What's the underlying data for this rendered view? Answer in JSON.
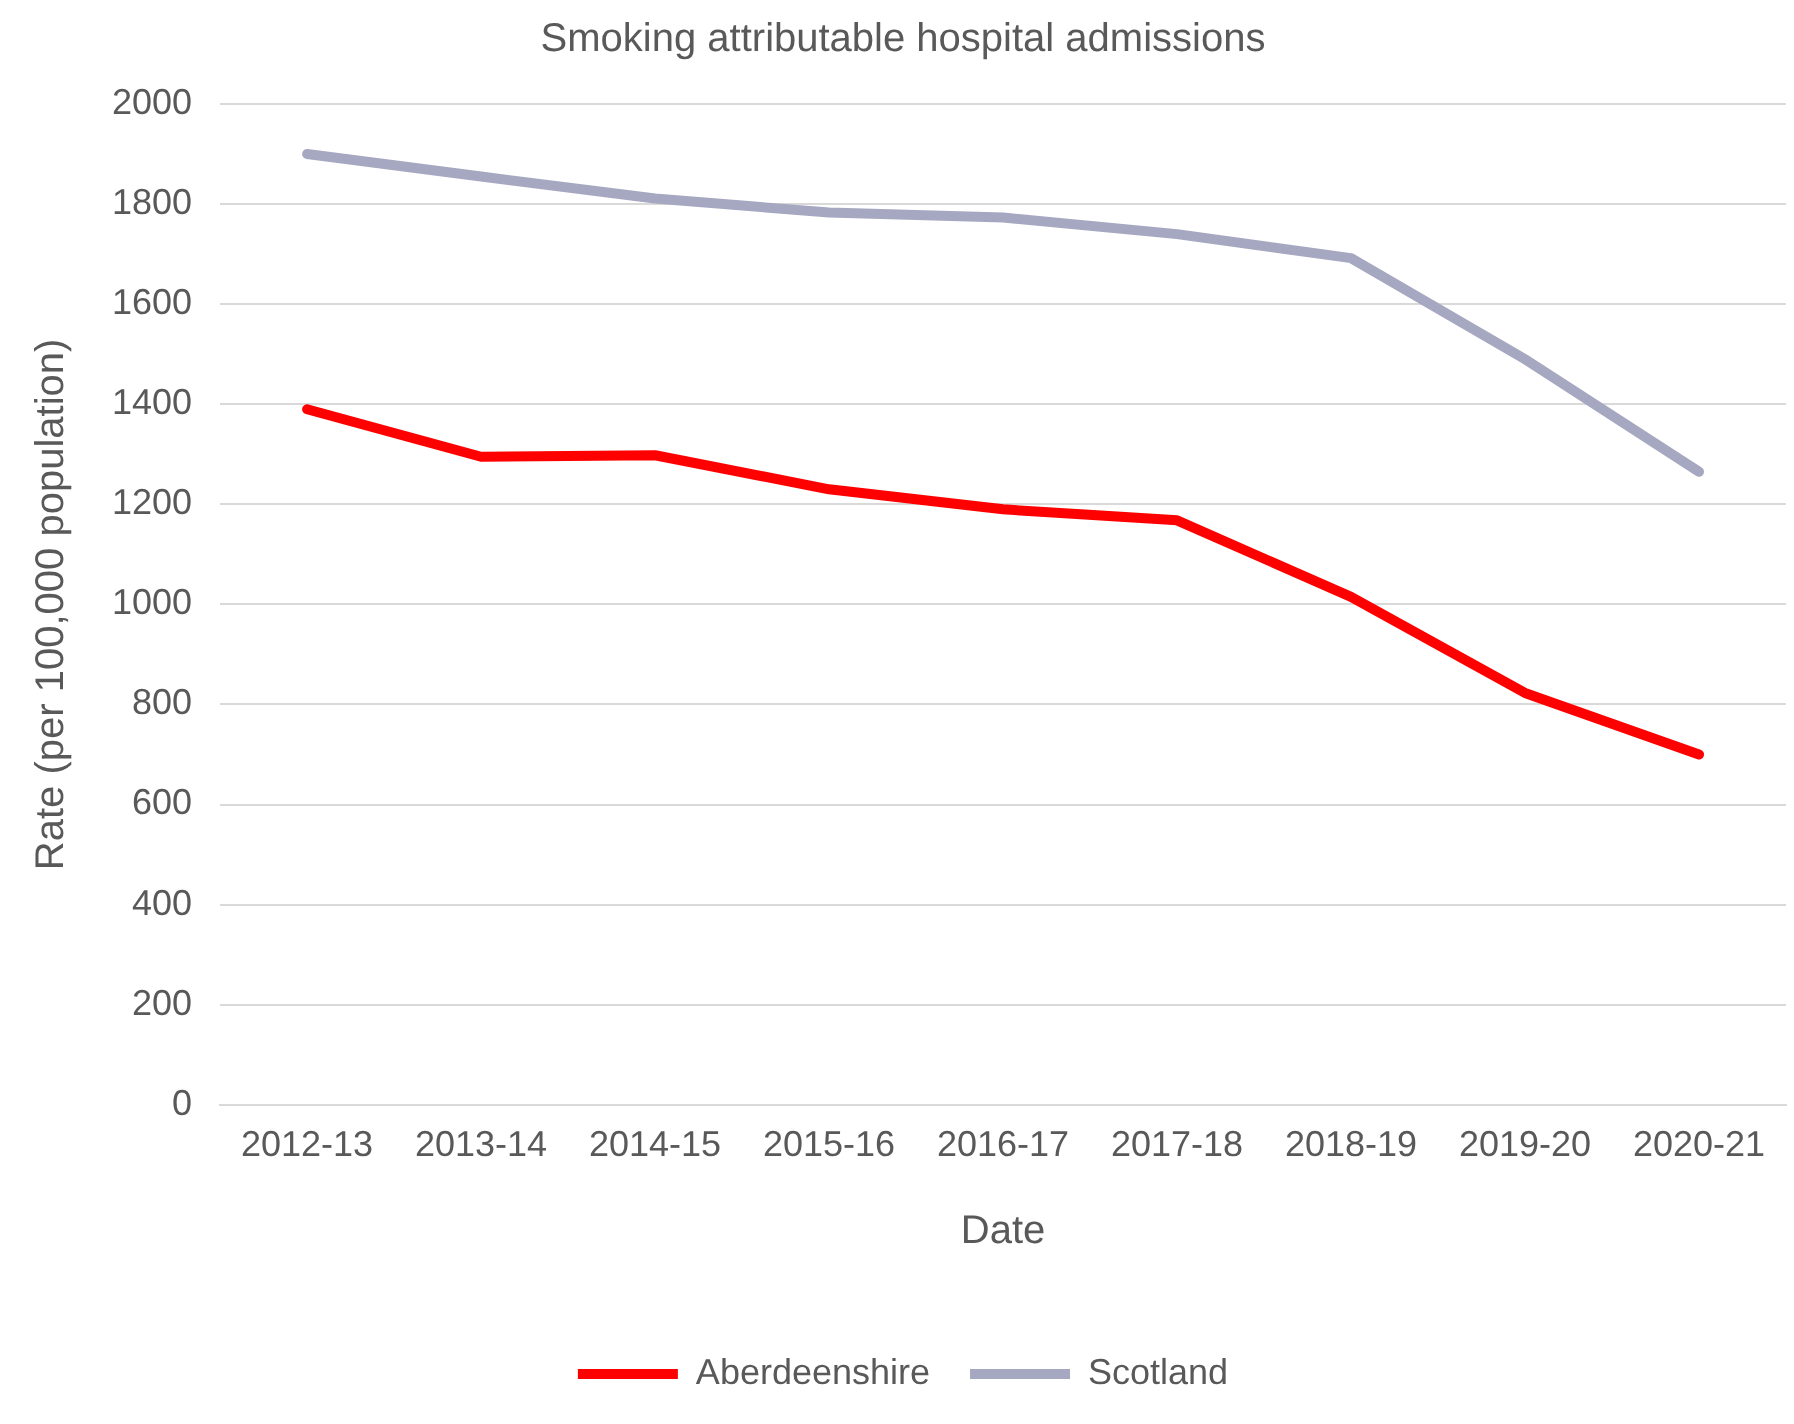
{
  "chart_data": {
    "type": "line",
    "title": "Smoking attributable hospital admissions",
    "xlabel": "Date",
    "ylabel": "Rate (per 100,000 population)",
    "categories": [
      "2012-13",
      "2013-14",
      "2014-15",
      "2015-16",
      "2016-17",
      "2017-18",
      "2018-19",
      "2019-20",
      "2020-21"
    ],
    "series": [
      {
        "name": "Aberdeenshire",
        "color": "#ff0000",
        "values": [
          1390,
          1295,
          1298,
          1230,
          1190,
          1168,
          1015,
          823,
          700
        ]
      },
      {
        "name": "Scotland",
        "color": "#a5a8c0",
        "values": [
          1900,
          1855,
          1811,
          1783,
          1773,
          1740,
          1692,
          1490,
          1265
        ]
      }
    ],
    "ylim": [
      0,
      2000
    ],
    "yticks": [
      0,
      200,
      400,
      600,
      800,
      1000,
      1200,
      1400,
      1600,
      1800,
      2000
    ],
    "grid": "y",
    "legend": "bottom",
    "marker": "none",
    "line_style": "solid"
  }
}
